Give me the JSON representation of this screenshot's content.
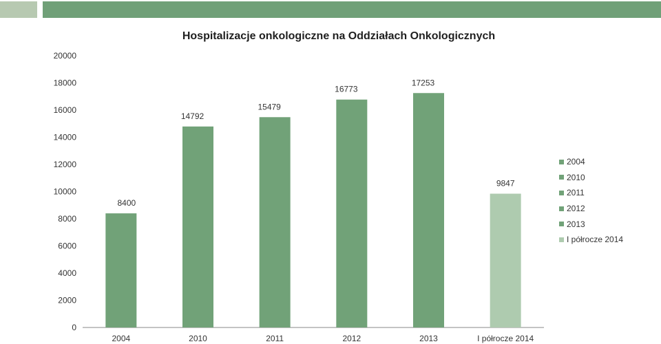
{
  "colors": {
    "banner_left": "#b7c9b1",
    "banner_right": "#70a078",
    "bar": "#71a278",
    "bar_highlight": "#aecbaf"
  },
  "chart_data": {
    "type": "bar",
    "title": "Hospitalizacje onkologiczne na Oddziałach Onkologicznych",
    "xlabel": "",
    "ylabel": "",
    "categories": [
      "2004",
      "2010",
      "2011",
      "2012",
      "2013",
      "I półrocze 2014"
    ],
    "values": [
      8400,
      14792,
      15479,
      16773,
      17253,
      9847
    ],
    "colors": [
      "#71a278",
      "#71a278",
      "#71a278",
      "#71a278",
      "#71a278",
      "#aecbaf"
    ],
    "ylim": [
      0,
      20000
    ],
    "yticks": [
      0,
      2000,
      4000,
      6000,
      8000,
      10000,
      12000,
      14000,
      16000,
      18000,
      20000
    ],
    "grid": false,
    "legend_position": "right",
    "legend": [
      "2004",
      "2010",
      "2011",
      "2012",
      "2013",
      "I półrocze 2014"
    ]
  }
}
